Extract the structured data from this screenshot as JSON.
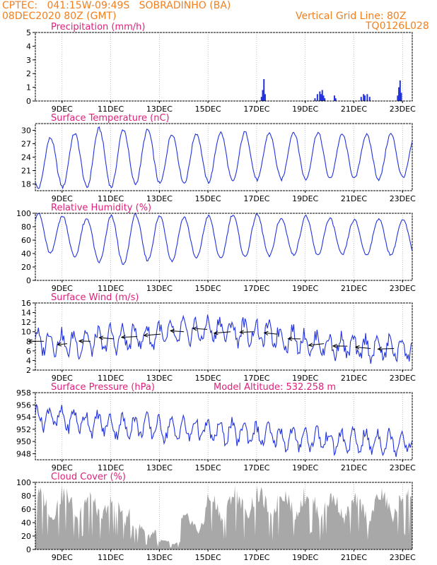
{
  "header": {
    "line1_left": "CPTEC:   041:15W-09:49S   SOBRADINHO (BA)",
    "line2_left": "08DEC2020 80Z (GMT)",
    "line2_right": "Vertical Grid Line: 80Z",
    "line3_right": "TQ0126L028"
  },
  "colors": {
    "header": "#f08020",
    "title": "#e0207a",
    "series": "#2233dd",
    "cloud": "#a8a8a8"
  },
  "x_ticks": [
    "9DEC",
    "11DEC",
    "13DEC",
    "15DEC",
    "17DEC",
    "19DEC",
    "21DEC",
    "23DEC"
  ],
  "chart_data": [
    {
      "id": "precip",
      "type": "bar",
      "title": "Precipitation (mm/h)",
      "ylim": [
        0,
        5
      ],
      "yticks": [
        0,
        1,
        2,
        3,
        4,
        5
      ],
      "x_range": [
        0,
        15.5
      ],
      "unit_note": "x = days after the first plotted hour",
      "points": [
        [
          9.3,
          0.3
        ],
        [
          9.35,
          0.8
        ],
        [
          9.4,
          1.6
        ],
        [
          9.45,
          0.5
        ],
        [
          11.5,
          0.2
        ],
        [
          11.6,
          0.5
        ],
        [
          11.7,
          0.7
        ],
        [
          11.75,
          0.5
        ],
        [
          11.8,
          0.8
        ],
        [
          11.85,
          0.4
        ],
        [
          11.9,
          0.2
        ],
        [
          12.3,
          0.4
        ],
        [
          12.35,
          0.2
        ],
        [
          13.4,
          0.3
        ],
        [
          13.5,
          0.5
        ],
        [
          13.55,
          0.4
        ],
        [
          13.65,
          0.5
        ],
        [
          13.75,
          0.3
        ],
        [
          14.9,
          0.4
        ],
        [
          14.95,
          1.0
        ],
        [
          15.0,
          1.5
        ],
        [
          15.05,
          0.6
        ]
      ]
    },
    {
      "id": "temp",
      "type": "line",
      "title": "Surface Temperature (nC)",
      "ylim": [
        16.5,
        31.5
      ],
      "yticks": [
        18,
        21,
        24,
        27,
        30
      ],
      "x_range": [
        0,
        15.5
      ],
      "daily_max": [
        28.3,
        29.3,
        30.4,
        30.2,
        30.1,
        29.2,
        29.3,
        29.5,
        29.6,
        29.4,
        29.6,
        29.5,
        29.1,
        29.0,
        29.2,
        28.7
      ],
      "daily_min": [
        17.0,
        17.3,
        17.2,
        17.3,
        18.0,
        18.1,
        18.2,
        18.4,
        18.5,
        18.9,
        19.0,
        19.0,
        19.2,
        19.2,
        19.0,
        19.5
      ]
    },
    {
      "id": "rh",
      "type": "line",
      "title": "Relative Humidity (%)",
      "ylim": [
        0,
        100
      ],
      "yticks": [
        0,
        20,
        40,
        60,
        80,
        100
      ],
      "x_range": [
        0,
        15.5
      ],
      "daily_max": [
        100,
        96,
        92,
        96,
        98,
        96,
        94,
        96,
        98,
        98,
        92,
        96,
        92,
        90,
        92,
        90
      ],
      "daily_min": [
        40,
        35,
        27,
        23,
        30,
        29,
        33,
        32,
        35,
        36,
        38,
        37,
        38,
        38,
        38,
        38
      ]
    },
    {
      "id": "wind",
      "type": "line",
      "title": "Surface Wind (m/s)",
      "ylim": [
        2,
        16
      ],
      "yticks": [
        2,
        4,
        6,
        8,
        10,
        12,
        14,
        16
      ],
      "x_range": [
        0,
        15.5
      ],
      "daily_mean": [
        8.0,
        7.5,
        8.0,
        8.5,
        9.0,
        9.5,
        10.0,
        10.5,
        10.0,
        9.5,
        8.5,
        7.5,
        7.0,
        6.5,
        6.5,
        6.5
      ]
    },
    {
      "id": "pres",
      "type": "line",
      "title": "Surface Pressure (hPa)",
      "extra_label": "Model Altitude: 532.258 m",
      "ylim": [
        947,
        958
      ],
      "yticks": [
        948,
        950,
        952,
        954,
        956,
        958
      ],
      "x_range": [
        0,
        15.5
      ],
      "daily_mean": [
        954.0,
        953.5,
        953.0,
        952.5,
        952.5,
        952.0,
        952.0,
        951.5,
        951.5,
        951.0,
        950.5,
        950.5,
        950.0,
        950.0,
        950.0,
        950.0
      ]
    },
    {
      "id": "cloud",
      "type": "area",
      "title": "Cloud Cover (%)",
      "ylim": [
        0,
        100
      ],
      "yticks": [
        0,
        20,
        40,
        60,
        80,
        100
      ],
      "x_range": [
        0,
        15.5
      ],
      "daily_max": [
        95,
        98,
        90,
        85,
        40,
        15,
        55,
        90,
        98,
        95,
        98,
        98,
        90,
        85,
        95,
        98
      ]
    }
  ]
}
